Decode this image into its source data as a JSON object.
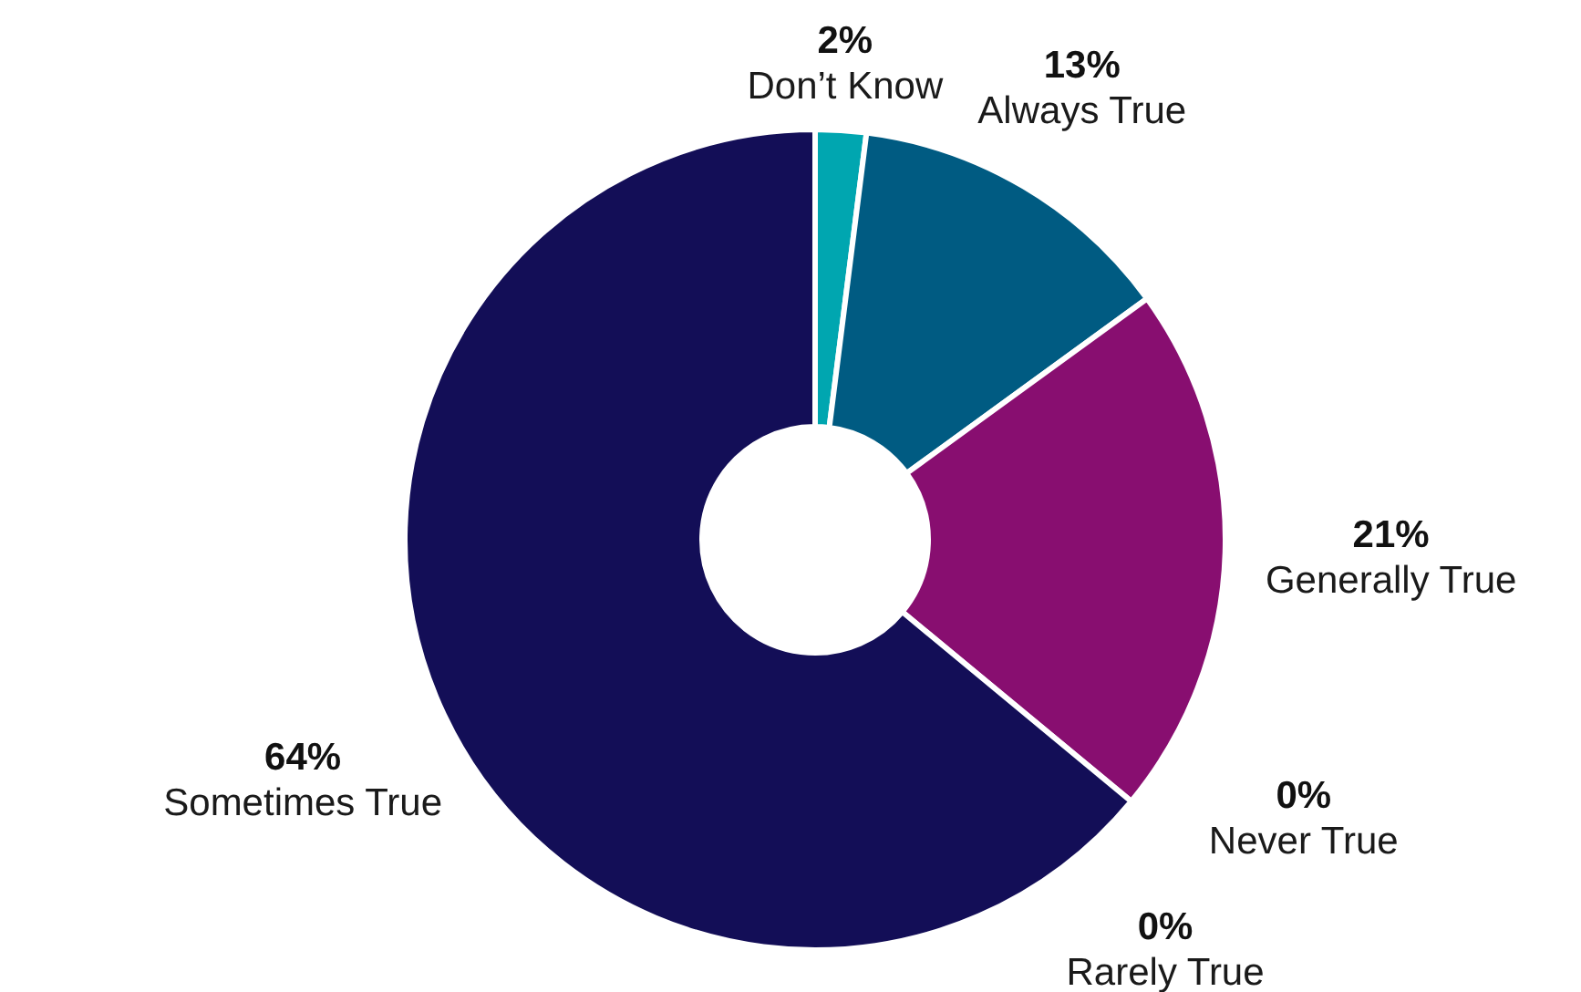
{
  "chart_data": {
    "type": "donut",
    "categories": [
      "Don’t Know",
      "Always True",
      "Generally True",
      "Never True",
      "Rarely True",
      "Sometimes True"
    ],
    "values": [
      2,
      13,
      21,
      0,
      0,
      64
    ],
    "value_labels": [
      "2%",
      "13%",
      "21%",
      "0%",
      "0%",
      "64%"
    ],
    "colors": [
      "#00a6b0",
      "#005b82",
      "#880e70",
      "#7fb3d5",
      "#4a4a8a",
      "#130e57"
    ]
  }
}
